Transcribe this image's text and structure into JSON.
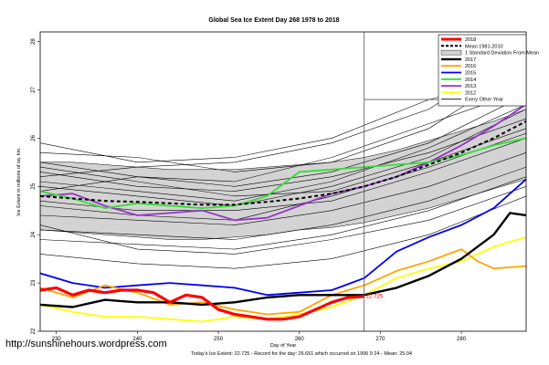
{
  "chart_data": {
    "type": "line",
    "title": "Global Sea Ice Extent Day 268 1978 to 2018",
    "xlabel": "Day of Year",
    "ylabel": "Ice Extent in millions of sq. km.",
    "xlim": [
      228,
      288
    ],
    "ylim": [
      22,
      28.2
    ],
    "x_ticks": [
      230,
      240,
      250,
      260,
      270,
      280
    ],
    "y_ticks": [
      22,
      23,
      24,
      25,
      26,
      27,
      28
    ],
    "grid": false,
    "legend_position": "top-right",
    "marker_day": 268,
    "footer": "Today's Ice Extent: 22.725  -  Record for the day: 26.651 which occurred on 1996 9 24  -  Mean: 25.04",
    "annotation": {
      "text": "22.725",
      "x": 268,
      "y": 22.725
    },
    "std_band": {
      "name": "1 Standard Deviation From Mean",
      "x": [
        228,
        232,
        236,
        240,
        244,
        248,
        252,
        256,
        260,
        264,
        268,
        272,
        276,
        280,
        284,
        288
      ],
      "upper": [
        25.5,
        25.5,
        25.45,
        25.4,
        25.35,
        25.35,
        25.35,
        25.4,
        25.45,
        25.5,
        25.6,
        25.75,
        25.95,
        26.15,
        26.35,
        26.6
      ],
      "lower": [
        24.1,
        24.05,
        24.0,
        23.95,
        23.9,
        23.9,
        23.95,
        24.0,
        24.1,
        24.15,
        24.25,
        24.4,
        24.55,
        24.75,
        24.95,
        25.15
      ],
      "color": "#d3d3d3"
    },
    "series": [
      {
        "name": "2018",
        "color": "#ff0000",
        "width": 3.2,
        "x": [
          228,
          230,
          232,
          234,
          236,
          238,
          240,
          242,
          244,
          246,
          248,
          250,
          252,
          254,
          256,
          258,
          260,
          262,
          264,
          266,
          268
        ],
        "values": [
          22.85,
          22.9,
          22.75,
          22.85,
          22.8,
          22.85,
          22.85,
          22.8,
          22.6,
          22.75,
          22.7,
          22.45,
          22.35,
          22.3,
          22.25,
          22.25,
          22.3,
          22.45,
          22.6,
          22.7,
          22.72
        ]
      },
      {
        "name": "Mean 1981-2010",
        "color": "#000000",
        "width": 2,
        "dash": "4,3",
        "x": [
          228,
          232,
          236,
          240,
          244,
          248,
          252,
          256,
          260,
          264,
          268,
          272,
          276,
          280,
          284,
          288
        ],
        "values": [
          24.8,
          24.75,
          24.7,
          24.68,
          24.65,
          24.62,
          24.62,
          24.68,
          24.75,
          24.85,
          25.0,
          25.2,
          25.45,
          25.7,
          26.0,
          26.35
        ]
      },
      {
        "name": "2017",
        "color": "#000000",
        "width": 2.4,
        "x": [
          228,
          232,
          236,
          240,
          244,
          248,
          252,
          256,
          260,
          264,
          268,
          272,
          276,
          280,
          284,
          286,
          288
        ],
        "values": [
          22.55,
          22.5,
          22.65,
          22.6,
          22.6,
          22.55,
          22.6,
          22.7,
          22.75,
          22.75,
          22.75,
          22.9,
          23.15,
          23.5,
          24.0,
          24.45,
          24.4
        ]
      },
      {
        "name": "2016",
        "color": "#ffa500",
        "width": 1.8,
        "x": [
          228,
          232,
          236,
          240,
          244,
          248,
          252,
          256,
          260,
          264,
          268,
          272,
          276,
          280,
          282,
          284,
          288
        ],
        "values": [
          22.9,
          22.7,
          22.95,
          22.8,
          22.55,
          22.6,
          22.45,
          22.35,
          22.4,
          22.75,
          22.95,
          23.25,
          23.45,
          23.7,
          23.45,
          23.3,
          23.35
        ]
      },
      {
        "name": "2015",
        "color": "#0000ee",
        "width": 1.8,
        "x": [
          228,
          232,
          236,
          240,
          244,
          248,
          252,
          256,
          260,
          264,
          268,
          272,
          276,
          280,
          284,
          288
        ],
        "values": [
          23.2,
          23.0,
          22.9,
          22.95,
          23.0,
          22.95,
          22.9,
          22.75,
          22.8,
          22.85,
          23.1,
          23.65,
          23.95,
          24.2,
          24.55,
          25.15
        ]
      },
      {
        "name": "2014",
        "color": "#33dd33",
        "width": 1.8,
        "x": [
          228,
          232,
          236,
          240,
          244,
          248,
          252,
          256,
          260,
          264,
          268,
          272,
          276,
          280,
          284,
          288
        ],
        "values": [
          24.9,
          24.75,
          24.55,
          24.65,
          24.6,
          24.55,
          24.6,
          24.8,
          25.3,
          25.35,
          25.4,
          25.45,
          25.5,
          25.65,
          25.85,
          26.0
        ]
      },
      {
        "name": "2013",
        "color": "#9932cc",
        "width": 1.8,
        "x": [
          228,
          232,
          236,
          240,
          244,
          248,
          252,
          256,
          260,
          264,
          268,
          272,
          276,
          280,
          284,
          288
        ],
        "values": [
          24.8,
          24.85,
          24.6,
          24.4,
          24.45,
          24.5,
          24.3,
          24.35,
          24.6,
          24.85,
          25.0,
          25.2,
          25.5,
          25.85,
          26.25,
          26.7
        ]
      },
      {
        "name": "2012",
        "color": "#ffff00",
        "width": 1.8,
        "x": [
          228,
          232,
          236,
          240,
          244,
          248,
          252,
          256,
          260,
          264,
          268,
          272,
          276,
          280,
          284,
          288
        ],
        "values": [
          22.55,
          22.4,
          22.3,
          22.3,
          22.25,
          22.2,
          22.3,
          22.25,
          22.35,
          22.5,
          22.75,
          23.1,
          23.3,
          23.45,
          23.75,
          23.95
        ]
      }
    ],
    "legend_extra": {
      "name": "Every Other Year",
      "color": "#000000"
    },
    "background_lines": [
      {
        "x": [
          228,
          240,
          252,
          264,
          276,
          288
        ],
        "values": [
          25.7,
          25.6,
          25.3,
          25.5,
          26.2,
          27.5
        ]
      },
      {
        "x": [
          228,
          240,
          252,
          264,
          276,
          288
        ],
        "values": [
          25.2,
          25.4,
          25.5,
          25.9,
          26.6,
          27.9
        ]
      },
      {
        "x": [
          228,
          240,
          252,
          264,
          276,
          288
        ],
        "values": [
          25.9,
          25.5,
          25.6,
          26.0,
          26.8,
          27.3
        ]
      },
      {
        "x": [
          228,
          240,
          252,
          264,
          276,
          288
        ],
        "values": [
          25.5,
          25.2,
          25.0,
          25.3,
          25.9,
          26.9
        ]
      },
      {
        "x": [
          228,
          240,
          252,
          264,
          276,
          288
        ],
        "values": [
          25.3,
          25.0,
          24.9,
          25.2,
          25.7,
          26.4
        ]
      },
      {
        "x": [
          228,
          240,
          252,
          264,
          276,
          288
        ],
        "values": [
          25.0,
          24.8,
          24.6,
          25.0,
          25.6,
          26.6
        ]
      },
      {
        "x": [
          228,
          240,
          252,
          264,
          276,
          288
        ],
        "values": [
          24.7,
          24.5,
          24.5,
          24.7,
          25.3,
          26.0
        ]
      },
      {
        "x": [
          228,
          240,
          252,
          264,
          276,
          288
        ],
        "values": [
          24.4,
          24.3,
          24.2,
          24.5,
          25.0,
          25.7
        ]
      },
      {
        "x": [
          228,
          240,
          252,
          264,
          276,
          288
        ],
        "values": [
          24.1,
          24.0,
          23.9,
          24.2,
          24.7,
          25.4
        ]
      },
      {
        "x": [
          228,
          240,
          252,
          264,
          276,
          288
        ],
        "values": [
          23.9,
          23.8,
          23.7,
          24.0,
          24.5,
          25.2
        ]
      },
      {
        "x": [
          228,
          240,
          252,
          264,
          276,
          288
        ],
        "values": [
          24.9,
          25.2,
          25.1,
          25.6,
          26.3,
          27.0
        ]
      },
      {
        "x": [
          228,
          240,
          252,
          264,
          276,
          288
        ],
        "values": [
          25.4,
          25.1,
          24.8,
          24.9,
          25.5,
          26.2
        ]
      },
      {
        "x": [
          228,
          240,
          252,
          264,
          276,
          288
        ],
        "values": [
          24.2,
          23.7,
          23.6,
          23.9,
          24.3,
          25.0
        ]
      },
      {
        "x": [
          228,
          240,
          252,
          264,
          276,
          288
        ],
        "values": [
          24.6,
          24.4,
          24.3,
          24.8,
          25.4,
          26.1
        ]
      },
      {
        "x": [
          228,
          240,
          252,
          264,
          276,
          288
        ],
        "values": [
          23.6,
          23.4,
          23.3,
          23.5,
          24.0,
          24.8
        ]
      },
      {
        "x": [
          228,
          240,
          252,
          264,
          276,
          288
        ],
        "values": [
          25.1,
          24.9,
          24.7,
          25.1,
          25.8,
          26.7
        ]
      }
    ]
  }
}
